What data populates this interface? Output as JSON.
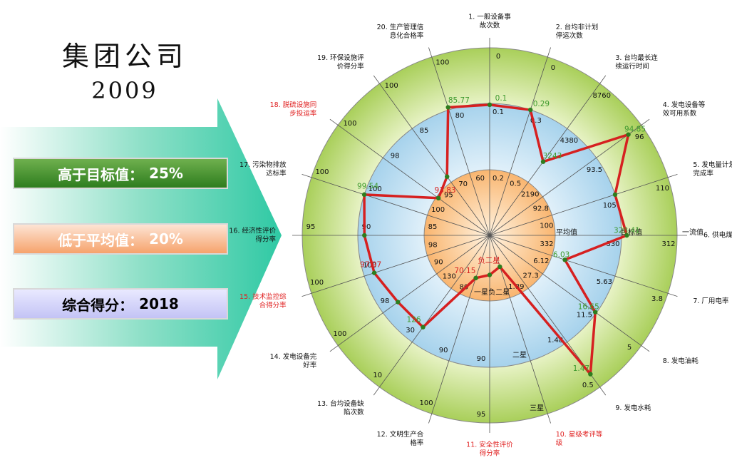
{
  "header": {
    "company": "集团公司",
    "year": "2009"
  },
  "summary": [
    {
      "label": "高于目标值：",
      "value": "25%"
    },
    {
      "label": "低于平均值：",
      "value": "20%"
    },
    {
      "label": "综合得分：",
      "value": "2018"
    }
  ],
  "colors": {
    "outer_ring": "#a9cf5a",
    "middle_ring": "#a6d2ec",
    "inner_disc": "#f9b56f",
    "polygon": "#d62020",
    "point": "#2e7d1e",
    "value_green": "#3f9a2f",
    "value_red": "#d62020",
    "highlight_label": "#e02020"
  },
  "chart_data": {
    "type": "radar",
    "ring_labels": {
      "inner": "平均值",
      "middle": "目标值",
      "outer": "一流值"
    },
    "axes": [
      {
        "name": "1. 一般设备事故次数",
        "first": "0.2",
        "second": "0.1",
        "third": "0",
        "value": "0.1",
        "value_color": "green",
        "highlight": false
      },
      {
        "name": "2. 台均非计划停运次数",
        "first": "0.5",
        "second": "0.3",
        "third": "0",
        "value": "0.29",
        "value_color": "green",
        "highlight": false
      },
      {
        "name": "3. 台均最长连续运行时间",
        "first": "2190",
        "second": "4380",
        "third": "8760",
        "value": "3243",
        "value_color": "green",
        "highlight": false
      },
      {
        "name": "4. 发电设备等效可用系数",
        "first": "92.8",
        "second": "93.5",
        "third": "96",
        "value": "94.85",
        "value_color": "green",
        "highlight": false
      },
      {
        "name": "5. 发电量计划完成率",
        "first": "100",
        "second": "105",
        "third": "110",
        "value": "",
        "value_color": "green",
        "highlight": false
      },
      {
        "name": "6. 供电煤耗",
        "first": "332",
        "second": "330",
        "third": "312",
        "value": "328.41",
        "value_color": "green",
        "highlight": false
      },
      {
        "name": "7. 厂用电率",
        "first": "6.12",
        "second": "5.63",
        "third": "3.8",
        "value": "6.03",
        "value_color": "green",
        "highlight": false
      },
      {
        "name": "8. 发电油耗",
        "first": "27.3",
        "second": "11.5",
        "third": "5",
        "value": "16.65",
        "value_color": "green",
        "highlight": false
      },
      {
        "name": "9. 发电水耗",
        "first": "1.89",
        "second": "1.48",
        "third": "0.5",
        "value": "1.47",
        "value_color": "green",
        "highlight": false
      },
      {
        "name": "10. 星级考评等级",
        "first": "负二星",
        "second": "二星",
        "third": "三星",
        "value": "负二星",
        "value_color": "red",
        "highlight": true
      },
      {
        "name": "11. 安全性评价得分率",
        "first": "一星",
        "second": "90",
        "third": "95",
        "value": "",
        "value_color": "red",
        "highlight": true
      },
      {
        "name": "12. 文明生产合格率",
        "first": "80",
        "second": "90",
        "third": "100",
        "value": "70.15",
        "value_color": "red",
        "highlight": false
      },
      {
        "name": "13. 台均设备缺陷次数",
        "first": "130",
        "second": "30",
        "third": "10",
        "value": "126",
        "value_color": "green",
        "highlight": false
      },
      {
        "name": "14. 发电设备完好率",
        "first": "90",
        "second": "98",
        "third": "100",
        "value": "",
        "value_color": "green",
        "highlight": false
      },
      {
        "name": "15. 技术监控综合得分率",
        "first": "98",
        "second": "100",
        "third": "100",
        "value": "97.97",
        "value_color": "red",
        "highlight": true
      },
      {
        "name": "16. 经济性评价得分率",
        "first": "85",
        "second": "90",
        "third": "95",
        "value": "",
        "value_color": "red",
        "highlight": false
      },
      {
        "name": "17. 污染物排放达标率",
        "first": "100",
        "second": "100",
        "third": "100",
        "value": "99.54",
        "value_color": "green",
        "highlight": false
      },
      {
        "name": "18. 脱硫设施同步投运率",
        "first": "95",
        "second": "98",
        "third": "100",
        "value": "93.83",
        "value_color": "red",
        "highlight": true
      },
      {
        "name": "19. 环保设施评价得分率",
        "first": "70",
        "second": "85",
        "third": "100",
        "value": "",
        "value_color": "green",
        "highlight": false
      },
      {
        "name": "20. 生产管理信息化合格率",
        "first": "60",
        "second": "80",
        "third": "100",
        "value": "85.77",
        "value_color": "green",
        "highlight": false
      }
    ],
    "polygon_levels": [
      0.99,
      1.0,
      0.69,
      1.3,
      1.0,
      1.04,
      0.6,
      0.99,
      1.3,
      0.25,
      0.3,
      0.34,
      0.86,
      0.86,
      0.92,
      0.95,
      1.0,
      0.48,
      0.55,
      1.02
    ]
  }
}
